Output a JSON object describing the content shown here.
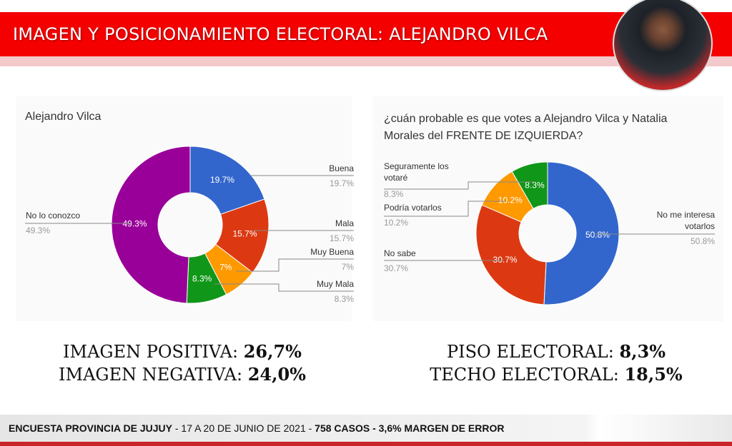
{
  "header": {
    "title": "IMAGEN Y POSICIONAMIENTO ELECTORAL: ALEJANDRO VILCA"
  },
  "chart_data": [
    {
      "type": "pie",
      "donut": true,
      "title": "Alejandro Vilca",
      "slices": [
        {
          "label": "Buena",
          "value": 19.7,
          "display": "19.7%",
          "color": "#3366cc"
        },
        {
          "label": "Mala",
          "value": 15.7,
          "display": "15.7%",
          "color": "#dc3912"
        },
        {
          "label": "Muy Buena",
          "value": 7,
          "display": "7%",
          "color": "#ff9900"
        },
        {
          "label": "Muy Mala",
          "value": 8.3,
          "display": "8.3%",
          "color": "#109618"
        },
        {
          "label": "No lo conozco",
          "value": 49.3,
          "display": "49.3%",
          "color": "#990099"
        }
      ]
    },
    {
      "type": "pie",
      "donut": true,
      "title": "¿cuán probable es que votes a Alejandro Vilca y Natalia Morales del FRENTE DE IZQUIERDA?",
      "slices": [
        {
          "label": "No me interesa votarlos",
          "value": 50.8,
          "display": "50.8%",
          "color": "#3366cc"
        },
        {
          "label": "No sabe",
          "value": 30.7,
          "display": "30.7%",
          "color": "#dc3912"
        },
        {
          "label": "Podría votarlos",
          "value": 10.2,
          "display": "10.2%",
          "color": "#ff9900"
        },
        {
          "label": "Seguramente los votaré",
          "value": 8.3,
          "display": "8.3%",
          "color": "#109618"
        }
      ]
    }
  ],
  "summary": {
    "pos_label": "IMAGEN POSITIVA:",
    "pos_value": "26,7%",
    "neg_label": "IMAGEN NEGATIVA:",
    "neg_value": "24,0%",
    "piso_label": "PISO ELECTORAL:",
    "piso_value": "8,3%",
    "techo_label": "TECHO ELECTORAL:",
    "techo_value": "18,5%"
  },
  "footer": {
    "part1": "ENCUESTA PROVINCIA DE JUJUY",
    "part2": " - 17 A 20 DE JUNIO DE 2021 - ",
    "part3": "758 CASOS - 3,6% MARGEN DE ERROR"
  }
}
